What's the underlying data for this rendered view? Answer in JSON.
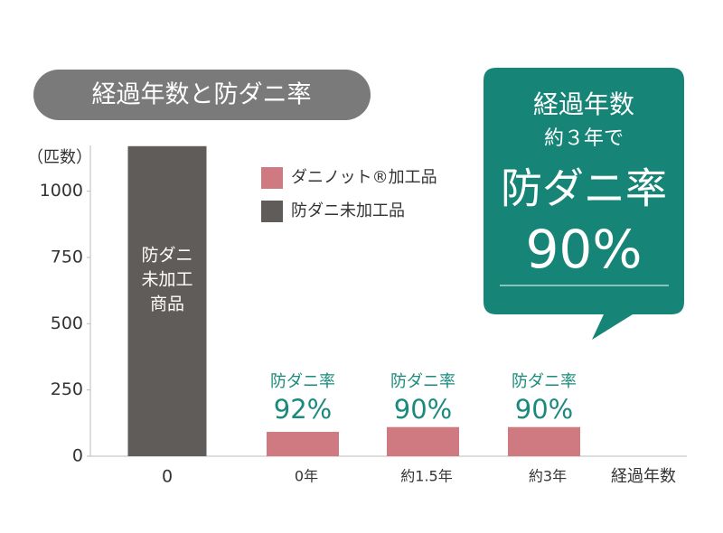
{
  "chart_data": {
    "type": "bar",
    "title": "経過年数と防ダニ率",
    "y_label": "（匹数）",
    "x_label": "経過年数",
    "categories": [
      "0",
      "0年",
      "約1.5年",
      "約3年"
    ],
    "series": [
      {
        "name": "ダニノット®加工品",
        "color": "#cf7a80",
        "values": [
          null,
          92,
          110,
          110
        ]
      },
      {
        "name": "防ダニ未加工品",
        "color": "#5f5c5a",
        "values": [
          1170,
          null,
          null,
          null
        ]
      }
    ],
    "bar_label": [
      "防ダニ",
      "未加工",
      "商品"
    ],
    "rate_prefix": "防ダニ率",
    "rate_labels": [
      null,
      "92%",
      "90%",
      "90%"
    ],
    "callout": [
      "経過年数",
      "約３年で",
      "防ダニ率",
      "90%"
    ],
    "ylim": [
      0,
      1200
    ],
    "yticks": [
      0,
      250,
      500,
      750,
      1000
    ]
  }
}
